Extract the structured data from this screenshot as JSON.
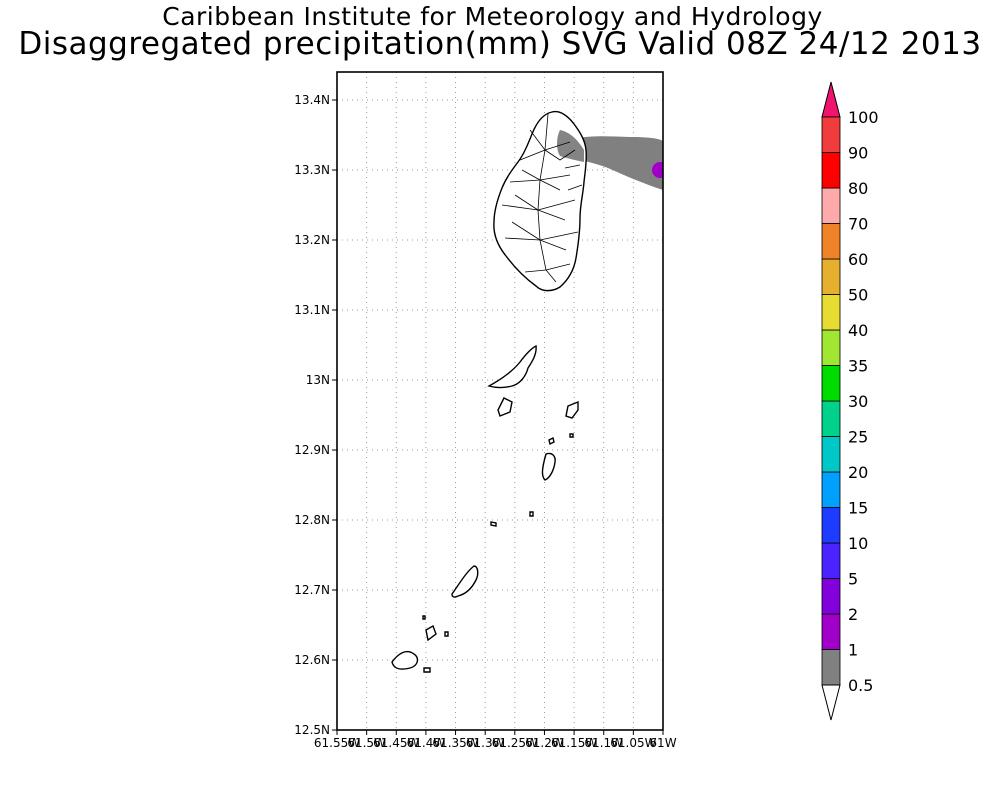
{
  "title": {
    "line1": "Caribbean Institute for Meteorology and Hydrology",
    "line2": "Disaggregated precipitation(mm) SVG Valid 08Z 24/12 2013"
  },
  "map": {
    "lon_range": [
      -61.55,
      -61.0
    ],
    "lat_range": [
      12.5,
      13.44
    ],
    "lat_ticks": [
      "13.4N",
      "13.3N",
      "13.2N",
      "13.1N",
      "13N",
      "12.9N",
      "12.8N",
      "12.7N",
      "12.6N",
      "12.5N"
    ],
    "lon_ticks": [
      "61.55W",
      "61.5W",
      "61.45W",
      "61.4W",
      "61.35W",
      "61.3W",
      "61.25W",
      "61.2W",
      "61.15W",
      "61.1W",
      "61.05W",
      "61W"
    ],
    "grid": "dotted",
    "features": [
      "St. Vincent with watershed boundaries",
      "Grenadines islands"
    ],
    "precip_field": "plume of 0.5-1 mm (gray) extending east from northern St. Vincent, 2-5 mm (purple) at eastern edge"
  },
  "legend": {
    "levels": [
      "0.5",
      "1",
      "2",
      "5",
      "10",
      "15",
      "20",
      "25",
      "30",
      "35",
      "40",
      "50",
      "60",
      "70",
      "80",
      "90",
      "100"
    ],
    "colors": [
      "#808080",
      "#a000c8",
      "#8200dc",
      "#4b23ff",
      "#1e3cff",
      "#00a0ff",
      "#00c8c8",
      "#00d28c",
      "#00dc00",
      "#a0e632",
      "#e6dc32",
      "#e6af2d",
      "#f08228",
      "#ffaaaa",
      "#ff0000",
      "#f03c3c",
      "#f0146e"
    ],
    "below_color": "#ffffff",
    "above_color": "#f0146e"
  }
}
